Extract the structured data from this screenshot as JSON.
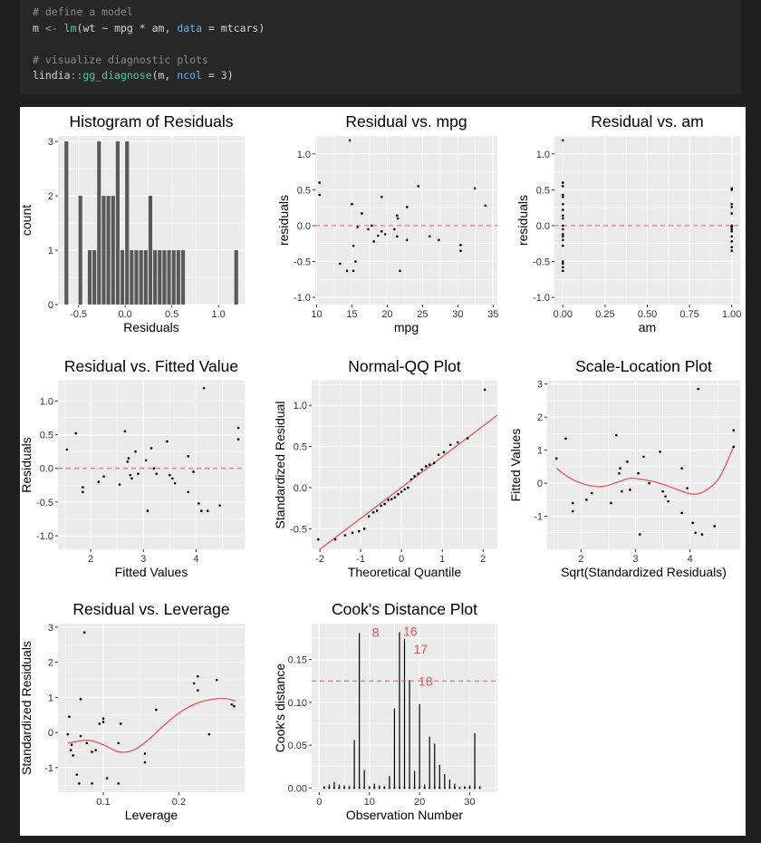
{
  "code": {
    "comment1": "# define a model",
    "line1": {
      "var": "m",
      "assign": "<-",
      "fn": "lm",
      "args": "(wt ~ mpg * am, ",
      "param": "data",
      "eq": " = ",
      "value": "mtcars)"
    },
    "comment2": "# visualize diagnostic plots",
    "line2": {
      "pkg": "lindia",
      "sep": "::",
      "fn": "gg_diagnose",
      "args": "(m, ",
      "param": "ncol",
      "eq": " = ",
      "value": "3",
      "close": ")"
    }
  },
  "colors": {
    "panel": "#ebebeb",
    "grid": "#ffffff",
    "bar": "#595959",
    "fit_line": "#e0575a",
    "point": "#000000"
  },
  "chart_data": [
    {
      "type": "bar",
      "title": "Histogram of Residuals",
      "xlabel": "Residuals",
      "ylabel": "count",
      "xlim": [
        -0.72,
        1.28
      ],
      "ylim": [
        0,
        3.1
      ],
      "xticks": [
        -0.5,
        0.0,
        0.5,
        1.0
      ],
      "xtick_labels": [
        "-0.5",
        "0.0",
        "0.5",
        "1.0"
      ],
      "yticks": [
        0,
        1,
        2,
        3
      ],
      "ytick_labels": [
        "0",
        "1",
        "2",
        "3"
      ],
      "bin_width": 0.05,
      "bin_centers": [
        -0.63,
        -0.48,
        -0.38,
        -0.33,
        -0.28,
        -0.23,
        -0.18,
        -0.13,
        -0.08,
        -0.03,
        0.02,
        0.07,
        0.12,
        0.17,
        0.22,
        0.27,
        0.32,
        0.37,
        0.42,
        0.47,
        0.52,
        0.57,
        0.62,
        1.19
      ],
      "values": [
        3,
        2,
        1,
        1,
        3,
        2,
        2,
        2,
        3,
        1,
        3,
        1,
        1,
        1,
        1,
        2,
        1,
        1,
        1,
        1,
        1,
        1,
        1,
        1
      ]
    },
    {
      "type": "scatter",
      "title": "Residual vs. mpg",
      "xlabel": "mpg",
      "ylabel": "residuals",
      "xlim": [
        9.8,
        35.6
      ],
      "ylim": [
        -1.1,
        1.25
      ],
      "xticks": [
        10,
        15,
        20,
        25,
        30,
        35
      ],
      "xtick_labels": [
        "10",
        "15",
        "20",
        "25",
        "30",
        "35"
      ],
      "yticks": [
        -1.0,
        -0.5,
        0.0,
        0.5,
        1.0
      ],
      "ytick_labels": [
        "-1.0",
        "-0.5",
        "0.0",
        "0.5",
        "1.0"
      ],
      "hline": 0,
      "points": [
        [
          10.4,
          0.6
        ],
        [
          10.4,
          0.43
        ],
        [
          13.3,
          -0.53
        ],
        [
          14.3,
          -0.63
        ],
        [
          14.7,
          1.19
        ],
        [
          15.0,
          0.3
        ],
        [
          15.2,
          -0.28
        ],
        [
          15.2,
          -0.63
        ],
        [
          15.5,
          -0.5
        ],
        [
          15.8,
          -0.02
        ],
        [
          16.4,
          0.17
        ],
        [
          17.3,
          -0.05
        ],
        [
          17.8,
          0.0
        ],
        [
          18.1,
          -0.22
        ],
        [
          18.7,
          -0.14
        ],
        [
          19.2,
          -0.08
        ],
        [
          19.2,
          0.4
        ],
        [
          19.7,
          -0.12
        ],
        [
          21.0,
          -0.05
        ],
        [
          21.4,
          0.14
        ],
        [
          21.4,
          -0.15
        ],
        [
          21.5,
          0.1
        ],
        [
          21.8,
          -0.63
        ],
        [
          22.8,
          -0.2
        ],
        [
          22.8,
          0.26
        ],
        [
          24.4,
          0.55
        ],
        [
          26.0,
          -0.15
        ],
        [
          27.3,
          -0.2
        ],
        [
          30.4,
          -0.27
        ],
        [
          30.4,
          -0.35
        ],
        [
          32.4,
          0.52
        ],
        [
          33.9,
          0.28
        ]
      ]
    },
    {
      "type": "scatter",
      "title": "Residual vs. am",
      "xlabel": "am",
      "ylabel": "residuals",
      "xlim": [
        -0.05,
        1.05
      ],
      "ylim": [
        -1.1,
        1.25
      ],
      "xticks": [
        0.0,
        0.25,
        0.5,
        0.75,
        1.0
      ],
      "xtick_labels": [
        "0.00",
        "0.25",
        "0.50",
        "0.75",
        "1.00"
      ],
      "yticks": [
        -1.0,
        -0.5,
        0.0,
        0.5,
        1.0
      ],
      "ytick_labels": [
        "-1.0",
        "-0.5",
        "0.0",
        "0.5",
        "1.0"
      ],
      "hline": 0,
      "points": [
        [
          0,
          1.19
        ],
        [
          0,
          0.6
        ],
        [
          0,
          0.55
        ],
        [
          0,
          0.43
        ],
        [
          0,
          0.4
        ],
        [
          0,
          0.3
        ],
        [
          0,
          0.22
        ],
        [
          0,
          0.14
        ],
        [
          0,
          0.1
        ],
        [
          0,
          0.0
        ],
        [
          0,
          -0.05
        ],
        [
          0,
          -0.12
        ],
        [
          0,
          -0.15
        ],
        [
          0,
          -0.2
        ],
        [
          0,
          -0.28
        ],
        [
          0,
          -0.5
        ],
        [
          0,
          -0.53
        ],
        [
          0,
          -0.58
        ],
        [
          0,
          -0.63
        ],
        [
          1,
          0.52
        ],
        [
          1,
          0.5
        ],
        [
          1,
          0.3
        ],
        [
          1,
          0.26
        ],
        [
          1,
          0.17
        ],
        [
          1,
          0.0
        ],
        [
          1,
          -0.02
        ],
        [
          1,
          -0.05
        ],
        [
          1,
          -0.08
        ],
        [
          1,
          -0.15
        ],
        [
          1,
          -0.22
        ],
        [
          1,
          -0.3
        ],
        [
          1,
          -0.35
        ]
      ]
    },
    {
      "type": "scatter",
      "title": "Residual vs. Fitted Value",
      "xlabel": "Fitted Values",
      "ylabel": "Residuals",
      "xlim": [
        1.38,
        4.92
      ],
      "ylim": [
        -1.2,
        1.3
      ],
      "xticks": [
        2,
        3,
        4
      ],
      "xtick_labels": [
        "2",
        "3",
        "4"
      ],
      "yticks": [
        -1.0,
        -0.5,
        0.0,
        0.5,
        1.0
      ],
      "ytick_labels": [
        "-1.0",
        "-0.5",
        "0.0",
        "0.5",
        "1.0"
      ],
      "hline": 0,
      "points": [
        [
          1.55,
          0.28
        ],
        [
          1.72,
          0.52
        ],
        [
          1.85,
          -0.28
        ],
        [
          1.85,
          -0.35
        ],
        [
          2.15,
          -0.2
        ],
        [
          2.25,
          -0.12
        ],
        [
          2.55,
          -0.24
        ],
        [
          2.65,
          0.55
        ],
        [
          2.7,
          0.1
        ],
        [
          2.72,
          0.15
        ],
        [
          2.75,
          -0.1
        ],
        [
          2.78,
          -0.15
        ],
        [
          2.85,
          0.25
        ],
        [
          2.9,
          -0.08
        ],
        [
          3.05,
          0.12
        ],
        [
          3.08,
          -0.63
        ],
        [
          3.15,
          0.3
        ],
        [
          3.2,
          0.0
        ],
        [
          3.25,
          -0.08
        ],
        [
          3.45,
          0.4
        ],
        [
          3.5,
          -0.1
        ],
        [
          3.55,
          -0.15
        ],
        [
          3.6,
          -0.22
        ],
        [
          3.85,
          0.18
        ],
        [
          3.85,
          -0.35
        ],
        [
          3.95,
          -0.05
        ],
        [
          4.05,
          -0.52
        ],
        [
          4.1,
          -0.63
        ],
        [
          4.15,
          1.19
        ],
        [
          4.22,
          -0.63
        ],
        [
          4.45,
          -0.55
        ],
        [
          4.8,
          0.6
        ],
        [
          4.8,
          0.43
        ]
      ]
    },
    {
      "type": "scatter",
      "title": "Normal-QQ Plot",
      "xlabel": "Theoretical Quantile",
      "ylabel": "Standardized Residual",
      "xlim": [
        -2.2,
        2.35
      ],
      "ylim": [
        -0.75,
        1.3
      ],
      "xticks": [
        -2,
        -1,
        0,
        1,
        2
      ],
      "xtick_labels": [
        "-2",
        "-1",
        "0",
        "1",
        "2"
      ],
      "yticks": [
        -0.5,
        0.0,
        0.5,
        1.0
      ],
      "ytick_labels": [
        "-0.5",
        "0.0",
        "0.5",
        "1.0"
      ],
      "line": {
        "intercept": 0.0,
        "slope": 0.375
      },
      "points": [
        [
          -2.04,
          -0.63
        ],
        [
          -1.62,
          -0.63
        ],
        [
          -1.38,
          -0.58
        ],
        [
          -1.2,
          -0.55
        ],
        [
          -1.04,
          -0.53
        ],
        [
          -0.91,
          -0.5
        ],
        [
          -0.8,
          -0.35
        ],
        [
          -0.69,
          -0.3
        ],
        [
          -0.6,
          -0.28
        ],
        [
          -0.5,
          -0.22
        ],
        [
          -0.41,
          -0.2
        ],
        [
          -0.32,
          -0.15
        ],
        [
          -0.24,
          -0.14
        ],
        [
          -0.16,
          -0.12
        ],
        [
          -0.08,
          -0.08
        ],
        [
          0.0,
          -0.05
        ],
        [
          0.08,
          -0.02
        ],
        [
          0.16,
          0.0
        ],
        [
          0.24,
          0.1
        ],
        [
          0.32,
          0.14
        ],
        [
          0.41,
          0.17
        ],
        [
          0.5,
          0.22
        ],
        [
          0.6,
          0.26
        ],
        [
          0.69,
          0.28
        ],
        [
          0.8,
          0.3
        ],
        [
          0.91,
          0.4
        ],
        [
          1.04,
          0.43
        ],
        [
          1.2,
          0.52
        ],
        [
          1.38,
          0.55
        ],
        [
          1.62,
          0.6
        ],
        [
          2.04,
          1.19
        ]
      ]
    },
    {
      "type": "scatter",
      "title": "Scale-Location Plot",
      "xlabel": "Sqrt(Standardized Residuals)",
      "ylabel": "Fitted Values",
      "xlim": [
        1.38,
        4.92
      ],
      "ylim": [
        -2.0,
        3.1
      ],
      "xticks": [
        2,
        3,
        4
      ],
      "xtick_labels": [
        "2",
        "3",
        "4"
      ],
      "yticks": [
        -1,
        0,
        1,
        2,
        3
      ],
      "ytick_labels": [
        "-1",
        "0",
        "1",
        "2",
        "3"
      ],
      "smooth": [
        [
          1.55,
          0.45
        ],
        [
          1.8,
          0.15
        ],
        [
          2.1,
          -0.05
        ],
        [
          2.4,
          -0.1
        ],
        [
          2.7,
          0.05
        ],
        [
          2.9,
          0.15
        ],
        [
          3.1,
          0.12
        ],
        [
          3.4,
          0.02
        ],
        [
          3.7,
          -0.15
        ],
        [
          3.95,
          -0.3
        ],
        [
          4.15,
          -0.32
        ],
        [
          4.35,
          -0.15
        ],
        [
          4.55,
          0.2
        ],
        [
          4.8,
          1.1
        ]
      ],
      "points": [
        [
          1.55,
          0.75
        ],
        [
          1.72,
          1.35
        ],
        [
          1.85,
          -0.6
        ],
        [
          1.85,
          -0.85
        ],
        [
          2.1,
          -0.5
        ],
        [
          2.2,
          -0.3
        ],
        [
          2.55,
          -0.6
        ],
        [
          2.65,
          1.45
        ],
        [
          2.7,
          0.3
        ],
        [
          2.72,
          0.45
        ],
        [
          2.75,
          -0.25
        ],
        [
          2.85,
          0.65
        ],
        [
          2.9,
          -0.2
        ],
        [
          3.05,
          0.3
        ],
        [
          3.08,
          -1.55
        ],
        [
          3.15,
          0.8
        ],
        [
          3.25,
          0.0
        ],
        [
          3.45,
          0.95
        ],
        [
          3.5,
          -0.25
        ],
        [
          3.55,
          -0.4
        ],
        [
          3.6,
          -0.55
        ],
        [
          3.85,
          0.45
        ],
        [
          3.85,
          -0.9
        ],
        [
          3.95,
          -0.15
        ],
        [
          4.05,
          -1.2
        ],
        [
          4.1,
          -1.5
        ],
        [
          4.15,
          2.85
        ],
        [
          4.22,
          -1.55
        ],
        [
          4.45,
          -1.3
        ],
        [
          4.8,
          1.6
        ],
        [
          4.8,
          1.1
        ]
      ]
    },
    {
      "type": "scatter",
      "title": "Residual vs. Leverage",
      "xlabel": "Leverage",
      "ylabel": "Standardized Residuals",
      "xlim": [
        0.04,
        0.287
      ],
      "ylim": [
        -1.7,
        3.1
      ],
      "xticks": [
        0.1,
        0.2
      ],
      "xtick_labels": [
        "0.1",
        "0.2"
      ],
      "yticks": [
        -1,
        0,
        1,
        2,
        3
      ],
      "ytick_labels": [
        "-1",
        "0",
        "1",
        "2",
        "3"
      ],
      "smooth": [
        [
          0.053,
          -0.3
        ],
        [
          0.08,
          -0.22
        ],
        [
          0.1,
          -0.35
        ],
        [
          0.12,
          -0.55
        ],
        [
          0.14,
          -0.5
        ],
        [
          0.16,
          -0.2
        ],
        [
          0.18,
          0.2
        ],
        [
          0.2,
          0.55
        ],
        [
          0.22,
          0.8
        ],
        [
          0.24,
          0.93
        ],
        [
          0.26,
          0.97
        ],
        [
          0.275,
          0.9
        ]
      ],
      "points": [
        [
          0.053,
          -0.05
        ],
        [
          0.055,
          0.45
        ],
        [
          0.057,
          -0.5
        ],
        [
          0.058,
          -0.35
        ],
        [
          0.06,
          -0.65
        ],
        [
          0.065,
          -1.2
        ],
        [
          0.068,
          -1.45
        ],
        [
          0.07,
          -0.1
        ],
        [
          0.07,
          0.95
        ],
        [
          0.075,
          2.85
        ],
        [
          0.078,
          -0.3
        ],
        [
          0.085,
          -0.55
        ],
        [
          0.085,
          -1.45
        ],
        [
          0.09,
          -0.5
        ],
        [
          0.095,
          0.25
        ],
        [
          0.1,
          0.3
        ],
        [
          0.1,
          0.4
        ],
        [
          0.105,
          -1.3
        ],
        [
          0.12,
          -0.3
        ],
        [
          0.12,
          -1.45
        ],
        [
          0.123,
          0.25
        ],
        [
          0.155,
          -0.6
        ],
        [
          0.155,
          -0.85
        ],
        [
          0.17,
          0.65
        ],
        [
          0.22,
          1.4
        ],
        [
          0.225,
          1.6
        ],
        [
          0.225,
          1.2
        ],
        [
          0.24,
          -0.05
        ],
        [
          0.25,
          1.5
        ],
        [
          0.27,
          0.8
        ],
        [
          0.273,
          0.75
        ]
      ]
    },
    {
      "type": "bar",
      "title": "Cook's Distance Plot",
      "xlabel": "Observation Number",
      "ylabel": "Cook's distance",
      "xlim": [
        -1.5,
        35.5
      ],
      "ylim": [
        -0.005,
        0.192
      ],
      "xticks": [
        0,
        10,
        20,
        30
      ],
      "xtick_labels": [
        "0",
        "10",
        "20",
        "30"
      ],
      "yticks": [
        0.0,
        0.05,
        0.1,
        0.15
      ],
      "ytick_labels": [
        "0.00",
        "0.05",
        "0.10",
        "0.15"
      ],
      "hline": 0.125,
      "x": [
        1,
        2,
        3,
        4,
        5,
        6,
        7,
        8,
        9,
        10,
        11,
        12,
        13,
        14,
        15,
        16,
        17,
        18,
        19,
        20,
        21,
        22,
        23,
        24,
        25,
        26,
        27,
        28,
        29,
        30,
        31,
        32
      ],
      "values": [
        0.002,
        0.004,
        0.007,
        0.004,
        0.003,
        0.002,
        0.056,
        0.181,
        0.021,
        0.002,
        0.005,
        0.003,
        0.002,
        0.014,
        0.093,
        0.182,
        0.174,
        0.126,
        0.02,
        0.098,
        0.004,
        0.06,
        0.052,
        0.027,
        0.016,
        0.01,
        0.005,
        0.001,
        0.002,
        0.003,
        0.064,
        0.002
      ],
      "labels": [
        {
          "x": 8,
          "text": "8"
        },
        {
          "x": 16,
          "text": "16"
        },
        {
          "x": 17,
          "text": "17"
        },
        {
          "x": 18,
          "text": "18"
        }
      ]
    }
  ]
}
